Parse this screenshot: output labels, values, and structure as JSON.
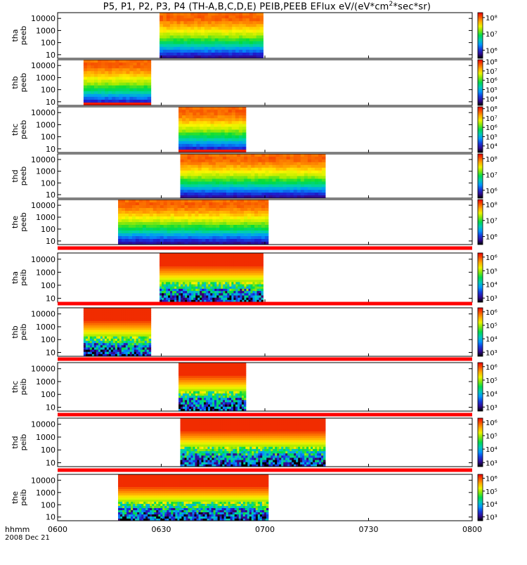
{
  "chart_data": {
    "type": "heatmap",
    "title_prefix": "P5, P1, P2, P3, P4 (TH-A,B,C,D,E) PEIB,PEEB EFlux eV/(eV*cm",
    "title_sup": "2",
    "title_suffix": "*sec*sr)",
    "x_axis": {
      "ticks": [
        "0600",
        "0630",
        "0700",
        "0730",
        "0800"
      ],
      "range_minutes": [
        0,
        120
      ],
      "label": "hhmm",
      "date": "2008 Dec 21"
    },
    "panels": [
      {
        "label_top": "tha",
        "label_bottom": "peeb",
        "species": "electron",
        "y_ticks": [
          "10",
          "100",
          "1000",
          "10000"
        ],
        "cbar_ticks": [
          "10⁶",
          "10⁷",
          "10⁸"
        ],
        "cbar_log": [
          5.5,
          8.3
        ],
        "data_interval": [
          29.5,
          59.5
        ],
        "extra": "tha"
      },
      {
        "label_top": "thb",
        "label_bottom": "peeb",
        "species": "electron",
        "y_ticks": [
          "10",
          "100",
          "1000",
          "10000"
        ],
        "cbar_ticks": [
          "10⁴",
          "10⁵",
          "10⁶",
          "10⁷",
          "10⁸"
        ],
        "cbar_log": [
          3.3,
          8.2
        ],
        "data_interval": [
          7.5,
          27.0
        ],
        "extra": "thb"
      },
      {
        "label_top": "thc",
        "label_bottom": "peeb",
        "species": "electron",
        "y_ticks": [
          "10",
          "100",
          "1000",
          "10000"
        ],
        "cbar_ticks": [
          "10⁴",
          "10⁵",
          "10⁶",
          "10⁷",
          "10⁸"
        ],
        "cbar_log": [
          3.3,
          8.2
        ],
        "data_interval": [
          35.0,
          54.5
        ],
        "extra": "thc"
      },
      {
        "label_top": "thd",
        "label_bottom": "peeb",
        "species": "electron",
        "y_ticks": [
          "10",
          "100",
          "1000",
          "10000"
        ],
        "cbar_ticks": [
          "10⁶",
          "10⁷",
          "10⁸"
        ],
        "cbar_log": [
          5.5,
          8.3
        ],
        "data_interval": [
          35.5,
          77.5
        ],
        "extra": "thd"
      },
      {
        "label_top": "the",
        "label_bottom": "peeb",
        "species": "electron",
        "y_ticks": [
          "10",
          "100",
          "1000",
          "10000"
        ],
        "cbar_ticks": [
          "10⁶",
          "10⁷",
          "10⁸"
        ],
        "cbar_log": [
          5.5,
          8.3
        ],
        "data_interval": [
          17.5,
          61.0
        ],
        "extra": "the"
      },
      {
        "label_top": "tha",
        "label_bottom": "peib",
        "species": "ion",
        "y_ticks": [
          "10",
          "100",
          "1000",
          "10000"
        ],
        "cbar_ticks": [
          "10³",
          "10⁴",
          "10⁵",
          "10⁶"
        ],
        "cbar_log": [
          2.7,
          6.3
        ],
        "data_interval": [
          29.5,
          59.5
        ],
        "extra": "tha"
      },
      {
        "label_top": "thb",
        "label_bottom": "peib",
        "species": "ion",
        "y_ticks": [
          "10",
          "100",
          "1000",
          "10000"
        ],
        "cbar_ticks": [
          "10³",
          "10⁴",
          "10⁵",
          "10⁶"
        ],
        "cbar_log": [
          2.7,
          6.3
        ],
        "data_interval": [
          7.5,
          27.0
        ],
        "extra": "thb"
      },
      {
        "label_top": "thc",
        "label_bottom": "peib",
        "species": "ion",
        "y_ticks": [
          "10",
          "100",
          "1000",
          "10000"
        ],
        "cbar_ticks": [
          "10³",
          "10⁴",
          "10⁵",
          "10⁶"
        ],
        "cbar_log": [
          2.7,
          6.3
        ],
        "data_interval": [
          35.0,
          54.5
        ],
        "extra": "thc"
      },
      {
        "label_top": "thd",
        "label_bottom": "peib",
        "species": "ion",
        "y_ticks": [
          "10",
          "100",
          "1000",
          "10000"
        ],
        "cbar_ticks": [
          "10³",
          "10⁴",
          "10⁵",
          "10⁶"
        ],
        "cbar_log": [
          2.7,
          6.3
        ],
        "data_interval": [
          35.5,
          77.5
        ],
        "extra": "thd"
      },
      {
        "label_top": "the",
        "label_bottom": "peib",
        "species": "ion",
        "y_ticks": [
          "10",
          "100",
          "1000",
          "10000"
        ],
        "cbar_ticks": [
          "10³",
          "10⁴",
          "10⁵",
          "10⁶"
        ],
        "cbar_log": [
          2.7,
          6.3
        ],
        "data_interval": [
          17.5,
          61.0
        ],
        "extra": "the"
      }
    ],
    "y_range_eV": [
      5,
      30000
    ],
    "y_scale": "log",
    "colormap": "rainbow",
    "separator_color": "#ff0000"
  }
}
